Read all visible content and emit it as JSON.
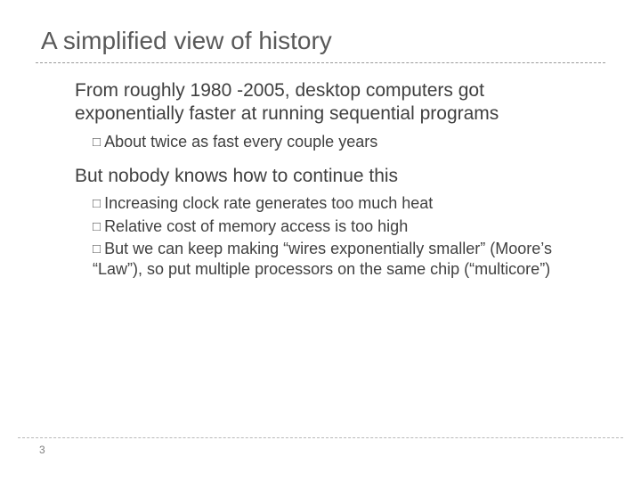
{
  "title": "A simplified view of history",
  "colors": {
    "background": "#ffffff",
    "title": "#595959",
    "body_text": "#404040",
    "dashed_rule": "#999999",
    "dashed_rule_light": "#b8b8b8",
    "pagenum": "#808080"
  },
  "typography": {
    "title_fontsize": 28,
    "body_fontsize": 21,
    "sub_fontsize": 18,
    "pagenum_fontsize": 12,
    "font_family": "Arial"
  },
  "bullet_glyph": "□",
  "points": [
    {
      "text": "From roughly 1980 -2005, desktop computers got exponentially faster at running sequential programs",
      "subs": [
        "About twice as fast every couple years"
      ]
    },
    {
      "text": "But nobody knows how to continue this",
      "subs": [
        "Increasing clock rate generates too much heat",
        "Relative cost of memory access is too high",
        "But we can keep making “wires exponentially smaller” (Moore’s “Law”), so put multiple processors on the same chip (“multicore”)"
      ]
    }
  ],
  "page_number": "3"
}
